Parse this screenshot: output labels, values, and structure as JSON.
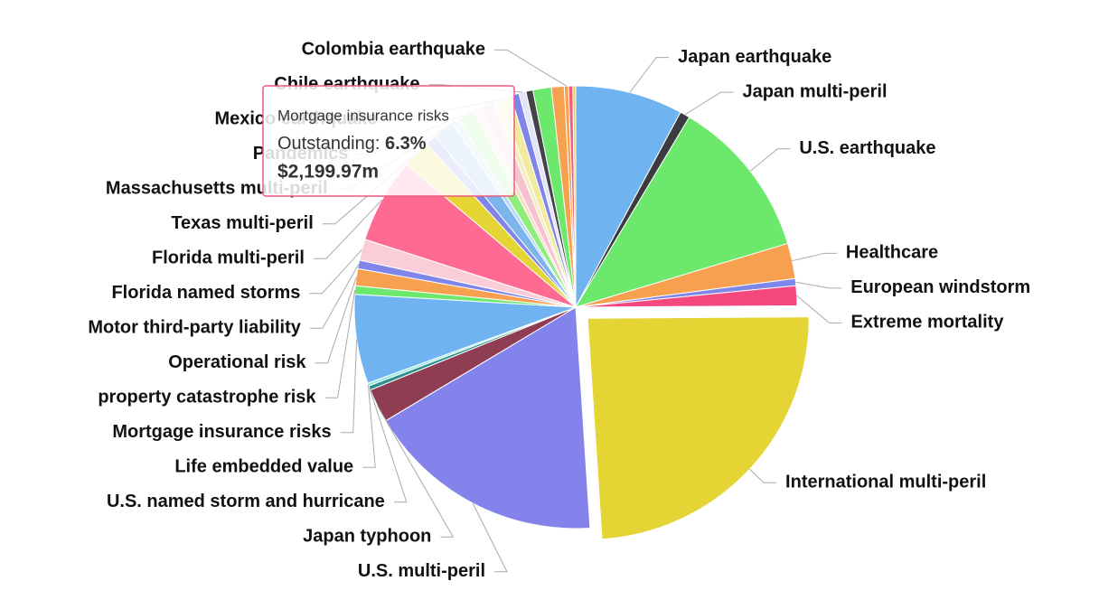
{
  "chart_data": {
    "type": "pie",
    "categories": [
      "Japan earthquake",
      "Japan multi-peril",
      "U.S. earthquake",
      "Healthcare",
      "European windstorm",
      "Extreme mortality",
      "International multi-peril",
      "U.S. multi-peril",
      "Japan typhoon",
      "U.S. named storm and hurricane",
      "Life embedded value",
      "Mortgage insurance risks",
      "property catastrophe risk",
      "Operational risk",
      "Motor third-party liability",
      "Florida named storms",
      "Florida multi-peril",
      "Texas multi-peril",
      null,
      null,
      "Massachusetts multi-peril",
      null,
      "Pandemics",
      null,
      "Mexico earthquake",
      null,
      null,
      "Chile earthquake",
      null,
      null,
      null,
      "Colombia earthquake",
      null,
      null
    ],
    "values": [
      7.6,
      0.7,
      11.4,
      2.5,
      0.5,
      1.4,
      23.3,
      16.9,
      2.4,
      0.3,
      0.2,
      6.3,
      0.6,
      1.2,
      0.6,
      1.5,
      6,
      2,
      0.8,
      1.5,
      0.5,
      1.2,
      0.5,
      1,
      0.5,
      0.8,
      0.6,
      0.5,
      0.5,
      1.3,
      0.9,
      0.3,
      0.3,
      0.2
    ],
    "colors": [
      "#6fb4f0",
      "#3b3b40",
      "#6ce86c",
      "#f7a050",
      "#8085e9",
      "#f5487c",
      "#e4d434",
      "#8383eb",
      "#8e3d52",
      "#2b908f",
      "#91e8e1",
      "#6fb4f0",
      "#6ce86c",
      "#f7a050",
      "#8085e9",
      "#fbcdd9",
      "#ff6a92",
      "#e4d434",
      "#8085e9",
      "#7cb5ec",
      "#b9d8f5",
      "#90ed7d",
      "#fbdcc8",
      "#f7c2d0",
      "#f2eec4",
      "#f2ea9e",
      "#8085e9",
      "#e4e4f8",
      "#434348",
      "#6ce86c",
      "#f7a050",
      "#f7a050",
      "#f15c80",
      "#e4d354"
    ],
    "sliced": 6,
    "tooltip": {
      "title": "Mortgage insurance risks",
      "label": "Outstanding: ",
      "value": "6.3%",
      "amount": "$2,199.97m"
    }
  }
}
